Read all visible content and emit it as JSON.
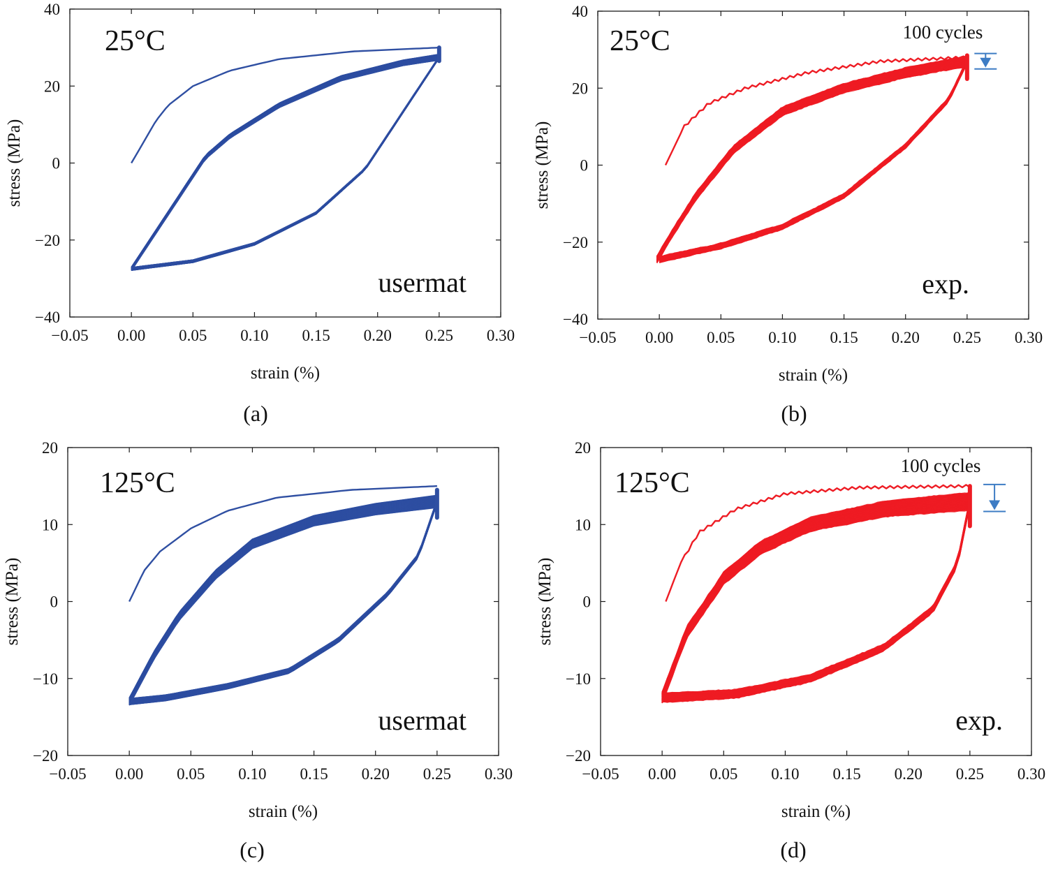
{
  "chart_data": [
    {
      "id": "a",
      "type": "line",
      "panel_label": "(a)",
      "temperature_label": "25°C",
      "source_label": "usermat",
      "cycles_label": "",
      "xlabel": "strain (%)",
      "ylabel": "stress (MPa)",
      "xlim": [
        -0.05,
        0.3
      ],
      "ylim": [
        -40,
        40
      ],
      "xticks": [
        "-0.05",
        "0.00",
        "0.05",
        "0.10",
        "0.15",
        "0.20",
        "0.25",
        "0.30"
      ],
      "yticks": [
        "-40",
        "-20",
        "0",
        "20",
        "40"
      ],
      "color": "#2f4fa2",
      "initial_loading": {
        "x": [
          0,
          0.02,
          0.03,
          0.05,
          0.08,
          0.12,
          0.18,
          0.25
        ],
        "y": [
          0,
          11,
          15,
          20,
          24,
          27,
          29,
          30
        ]
      },
      "loop_upper": {
        "x": [
          0,
          0.03,
          0.06,
          0.08,
          0.12,
          0.17,
          0.22,
          0.25
        ],
        "y": [
          -27.5,
          -13,
          1.5,
          7,
          15,
          22,
          26,
          27.5
        ]
      },
      "loop_lower": {
        "x": [
          0.25,
          0.22,
          0.19,
          0.15,
          0.1,
          0.05,
          0
        ],
        "y": [
          27.5,
          13,
          -1.5,
          -13,
          -21,
          -25.5,
          -27.5
        ]
      },
      "band_cycles": 100,
      "band_spread": 1.5,
      "decay_peak": {
        "from": 30,
        "to": 28
      },
      "noise": false,
      "cycle_arrow": false
    },
    {
      "id": "b",
      "type": "line",
      "panel_label": "(b)",
      "temperature_label": "25°C",
      "source_label": "exp.",
      "cycles_label": "100 cycles",
      "xlabel": "strain (%)",
      "ylabel": "stress (MPa)",
      "xlim": [
        -0.05,
        0.3
      ],
      "ylim": [
        -40,
        40
      ],
      "xticks": [
        "-0.05",
        "0.00",
        "0.05",
        "0.10",
        "0.15",
        "0.20",
        "0.25",
        "0.30"
      ],
      "yticks": [
        "-40",
        "-20",
        "0",
        "20",
        "40"
      ],
      "color": "#ee1c24",
      "initial_loading": {
        "x": [
          0.005,
          0.02,
          0.04,
          0.07,
          0.12,
          0.18,
          0.25
        ],
        "y": [
          0,
          10,
          16,
          20,
          24,
          27,
          28
        ]
      },
      "loop_upper": {
        "x": [
          -0.002,
          0.01,
          0.03,
          0.06,
          0.1,
          0.15,
          0.2,
          0.25
        ],
        "y": [
          -24.5,
          -18,
          -8,
          4,
          14,
          20,
          24,
          27
        ]
      },
      "loop_lower": {
        "x": [
          0.25,
          0.235,
          0.2,
          0.15,
          0.1,
          0.05,
          0
        ],
        "y": [
          27,
          17,
          5,
          -8,
          -16,
          -21,
          -24.5
        ]
      },
      "band_cycles": 100,
      "band_spread": 2.6,
      "decay_peak": {
        "from": 28.5,
        "to": 25
      },
      "noise": true,
      "cycle_arrow": true,
      "cycle_arrow_range": [
        29,
        25
      ],
      "cycle_arrow_x": 0.265
    },
    {
      "id": "c",
      "type": "line",
      "panel_label": "(c)",
      "temperature_label": "125°C",
      "source_label": "usermat",
      "cycles_label": "",
      "xlabel": "strain (%)",
      "ylabel": "stress (MPa)",
      "xlim": [
        -0.05,
        0.3
      ],
      "ylim": [
        -20,
        20
      ],
      "xticks": [
        "-0.05",
        "0.00",
        "0.05",
        "0.10",
        "0.15",
        "0.20",
        "0.25",
        "0.30"
      ],
      "yticks": [
        "-20",
        "-10",
        "0",
        "10",
        "20"
      ],
      "color": "#2f4fa2",
      "initial_loading": {
        "x": [
          0,
          0.012,
          0.025,
          0.05,
          0.08,
          0.12,
          0.18,
          0.25
        ],
        "y": [
          0,
          4,
          6.5,
          9.5,
          11.8,
          13.5,
          14.5,
          15
        ]
      },
      "loop_upper": {
        "x": [
          0,
          0.02,
          0.04,
          0.07,
          0.1,
          0.15,
          0.2,
          0.25
        ],
        "y": [
          -13,
          -7,
          -2,
          3.5,
          7.5,
          10.5,
          12,
          13
        ]
      },
      "loop_lower": {
        "x": [
          0.25,
          0.235,
          0.21,
          0.17,
          0.13,
          0.08,
          0.03,
          0
        ],
        "y": [
          13,
          6,
          1,
          -5,
          -9,
          -11,
          -12.5,
          -13
        ]
      },
      "band_cycles": 100,
      "band_spread": 1.6,
      "decay_peak": {
        "from": 14.5,
        "to": 12.5
      },
      "noise": false,
      "cycle_arrow": false
    },
    {
      "id": "d",
      "type": "line",
      "panel_label": "(d)",
      "temperature_label": "125°C",
      "source_label": "exp.",
      "cycles_label": "100 cycles",
      "xlabel": "strain (%)",
      "ylabel": "stress (MPa)",
      "xlim": [
        -0.05,
        0.3
      ],
      "ylim": [
        -20,
        20
      ],
      "xticks": [
        "-0.05",
        "0.00",
        "0.05",
        "0.10",
        "0.15",
        "0.20",
        "0.25",
        "0.30"
      ],
      "yticks": [
        "-20",
        "-10",
        "0",
        "10",
        "20"
      ],
      "color": "#ee1c24",
      "initial_loading": {
        "x": [
          0.003,
          0.015,
          0.03,
          0.06,
          0.1,
          0.16,
          0.25
        ],
        "y": [
          0,
          5,
          9,
          12,
          14,
          14.8,
          15
        ]
      },
      "loop_upper": {
        "x": [
          0,
          0.02,
          0.05,
          0.08,
          0.12,
          0.18,
          0.25
        ],
        "y": [
          -12.5,
          -4,
          3,
          7,
          10,
          12,
          13
        ]
      },
      "loop_lower": {
        "x": [
          0.25,
          0.24,
          0.22,
          0.18,
          0.12,
          0.06,
          0
        ],
        "y": [
          13,
          5,
          -1,
          -6,
          -10,
          -12,
          -12.5
        ]
      },
      "band_cycles": 100,
      "band_spread": 2.2,
      "decay_peak": {
        "from": 15,
        "to": 12
      },
      "noise": true,
      "cycle_arrow": true,
      "cycle_arrow_range": [
        15.2,
        11.7
      ],
      "cycle_arrow_x": 0.27
    }
  ]
}
